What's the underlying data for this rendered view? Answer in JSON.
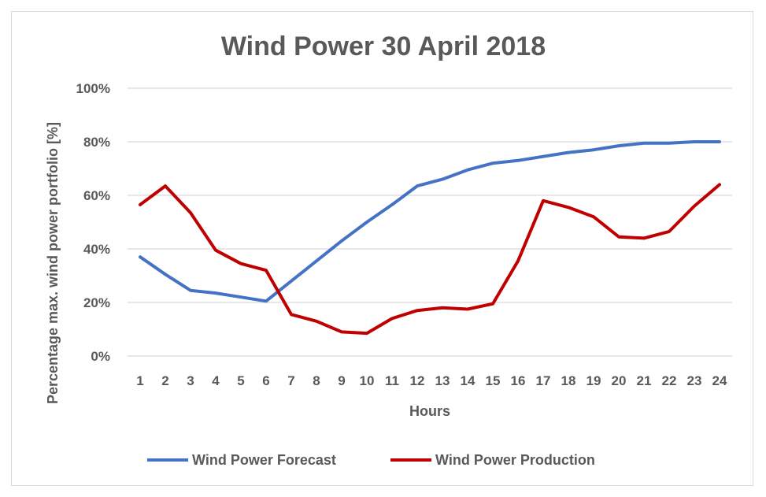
{
  "chart_data": {
    "type": "line",
    "title": "Wind Power 30 April 2018",
    "xlabel": "Hours",
    "ylabel": "Percentage max. wind power portfolio [%]",
    "categories": [
      "1",
      "2",
      "3",
      "4",
      "5",
      "6",
      "7",
      "8",
      "9",
      "10",
      "11",
      "12",
      "13",
      "14",
      "15",
      "16",
      "17",
      "18",
      "19",
      "20",
      "21",
      "22",
      "23",
      "24"
    ],
    "yticks": [
      "0%",
      "20%",
      "40%",
      "60%",
      "80%",
      "100%"
    ],
    "ylim": [
      0,
      100
    ],
    "grid": true,
    "legend_position": "bottom",
    "series": [
      {
        "name": "Wind Power Forecast",
        "color": "#4472c4",
        "values": [
          37,
          30.5,
          24.5,
          23.5,
          22,
          20.5,
          28,
          35.5,
          43,
          50,
          56.5,
          63.5,
          66,
          69.5,
          72,
          73,
          74.5,
          76,
          77,
          78.5,
          79.5,
          79.5,
          80,
          80
        ]
      },
      {
        "name": "Wind Power Production",
        "color": "#c00000",
        "values": [
          56.5,
          63.5,
          53.5,
          39.5,
          34.5,
          32,
          15.5,
          13,
          9,
          8.5,
          14,
          17,
          18,
          17.5,
          19.5,
          35.5,
          58,
          55.5,
          52,
          44.5,
          44,
          46.5,
          56,
          64
        ]
      }
    ]
  }
}
